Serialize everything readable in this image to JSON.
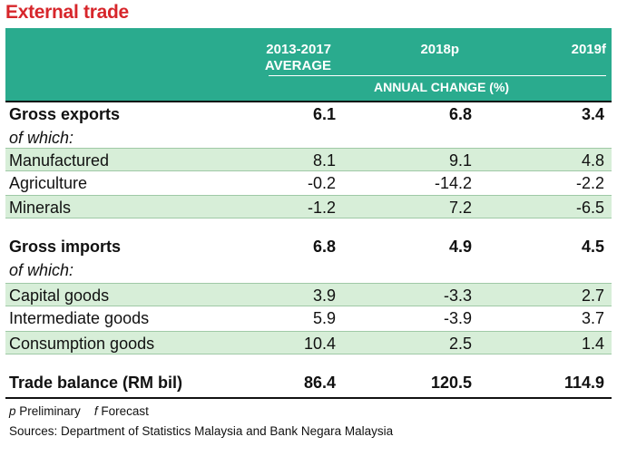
{
  "title": "External trade",
  "header": {
    "col1_line1": "2013-2017",
    "col1_line2": "AVERAGE",
    "col2": "2018p",
    "col3": "2019f",
    "subheader": "ANNUAL CHANGE (%)"
  },
  "rows": [
    {
      "label": "Gross exports",
      "v1": "6.1",
      "v2": "6.8",
      "v3": "3.4"
    },
    {
      "label": "of which:"
    },
    {
      "label": "Manufactured",
      "v1": "8.1",
      "v2": "9.1",
      "v3": "4.8"
    },
    {
      "label": "Agriculture",
      "v1": "-0.2",
      "v2": "-14.2",
      "v3": "-2.2"
    },
    {
      "label": "Minerals",
      "v1": "-1.2",
      "v2": "7.2",
      "v3": "-6.5"
    },
    {
      "label": "Gross imports",
      "v1": "6.8",
      "v2": "4.9",
      "v3": "4.5"
    },
    {
      "label": "of which:"
    },
    {
      "label": "Capital goods",
      "v1": "3.9",
      "v2": "-3.3",
      "v3": "2.7"
    },
    {
      "label": "Intermediate goods",
      "v1": "5.9",
      "v2": "-3.9",
      "v3": "3.7"
    },
    {
      "label": "Consumption goods",
      "v1": "10.4",
      "v2": "2.5",
      "v3": "1.4"
    },
    {
      "label": "Trade balance (RM bil)",
      "v1": "86.4",
      "v2": "120.5",
      "v3": "114.9"
    }
  ],
  "notes": {
    "p_mark": "p",
    "p_text": "Preliminary",
    "f_mark": "f",
    "f_text": "Forecast",
    "sources": "Sources: Department of Statistics Malaysia and Bank Negara Malaysia"
  },
  "colors": {
    "title": "#d7262b",
    "header_bg": "#2aab8e",
    "shade": "#d7eed8"
  }
}
